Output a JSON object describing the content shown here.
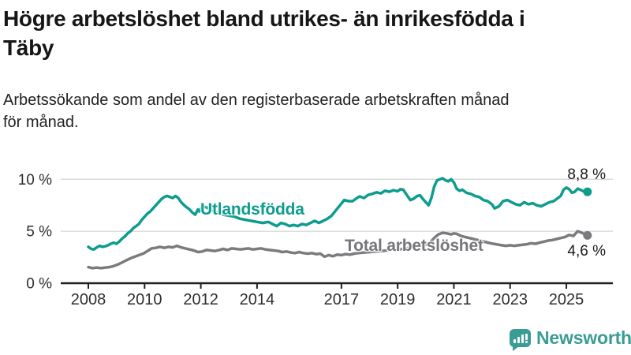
{
  "header": {
    "title": "Högre arbetslöshet bland utrikes- än inrikesfödda i\nTäby",
    "subtitle": "Arbetssökande som andel av den registerbaserade arbetskraften månad\nför månad."
  },
  "branding": {
    "name": "Newsworthy"
  },
  "colors": {
    "series_foreign_born": "#0d9c8e",
    "series_total": "#7a7a7f",
    "grid": "#d9d9d9",
    "axis": "#1f1f1f",
    "tick_text": "#2e2e2e",
    "brand_teal": "#3a9c94"
  },
  "chart_data": {
    "type": "line",
    "xlabel": "",
    "ylabel": "",
    "xlim": [
      2008,
      2025.75
    ],
    "ylim": [
      0,
      10.5
    ],
    "grid": "horizontal",
    "legend_position": "inline-labels",
    "x_axis": {
      "ticks": [
        2008,
        2010,
        2012,
        2014,
        2017,
        2019,
        2021,
        2023,
        2025
      ],
      "labels": [
        "2008",
        "2010",
        "2012",
        "2014",
        "2017",
        "2019",
        "2021",
        "2023",
        "2025"
      ]
    },
    "y_axis": {
      "ticks": [
        0,
        5,
        10
      ],
      "labels": [
        "0 %",
        "5 %",
        "10 %"
      ]
    },
    "series": [
      {
        "name": "Utlandsfödda",
        "color": "#0d9c8e",
        "end_label": "8,8 %",
        "end_value": 8.8,
        "points": [
          [
            2008.0,
            3.5
          ],
          [
            2008.1,
            3.3
          ],
          [
            2008.2,
            3.25
          ],
          [
            2008.3,
            3.45
          ],
          [
            2008.4,
            3.6
          ],
          [
            2008.5,
            3.5
          ],
          [
            2008.6,
            3.55
          ],
          [
            2008.7,
            3.65
          ],
          [
            2008.8,
            3.8
          ],
          [
            2008.9,
            3.9
          ],
          [
            2009.0,
            3.8
          ],
          [
            2009.1,
            4.0
          ],
          [
            2009.2,
            4.3
          ],
          [
            2009.3,
            4.5
          ],
          [
            2009.4,
            4.8
          ],
          [
            2009.5,
            5.0
          ],
          [
            2009.6,
            5.3
          ],
          [
            2009.7,
            5.5
          ],
          [
            2009.8,
            5.7
          ],
          [
            2009.9,
            6.1
          ],
          [
            2010.0,
            6.4
          ],
          [
            2010.1,
            6.7
          ],
          [
            2010.2,
            6.9
          ],
          [
            2010.3,
            7.2
          ],
          [
            2010.4,
            7.5
          ],
          [
            2010.5,
            7.8
          ],
          [
            2010.6,
            8.1
          ],
          [
            2010.7,
            8.3
          ],
          [
            2010.8,
            8.4
          ],
          [
            2010.9,
            8.3
          ],
          [
            2011.0,
            8.2
          ],
          [
            2011.1,
            8.4
          ],
          [
            2011.2,
            8.2
          ],
          [
            2011.3,
            7.8
          ],
          [
            2011.45,
            7.4
          ],
          [
            2011.6,
            7.1
          ],
          [
            2011.7,
            6.8
          ],
          [
            2011.8,
            6.6
          ],
          [
            2011.9,
            7.1
          ],
          [
            2011.95,
            6.9
          ],
          [
            2012.05,
            7.4
          ],
          [
            2012.2,
            7.3
          ],
          [
            2012.4,
            7.0
          ],
          [
            2012.6,
            6.8
          ],
          [
            2012.8,
            6.6
          ],
          [
            2013.0,
            6.5
          ],
          [
            2013.2,
            6.4
          ],
          [
            2013.4,
            6.2
          ],
          [
            2013.6,
            6.1
          ],
          [
            2013.8,
            6.0
          ],
          [
            2014.0,
            5.9
          ],
          [
            2014.2,
            5.8
          ],
          [
            2014.4,
            5.9
          ],
          [
            2014.55,
            5.7
          ],
          [
            2014.7,
            5.5
          ],
          [
            2014.85,
            5.8
          ],
          [
            2015.0,
            5.7
          ],
          [
            2015.15,
            5.5
          ],
          [
            2015.3,
            5.6
          ],
          [
            2015.45,
            5.5
          ],
          [
            2015.6,
            5.7
          ],
          [
            2015.75,
            5.6
          ],
          [
            2015.9,
            5.8
          ],
          [
            2016.05,
            6.0
          ],
          [
            2016.2,
            5.8
          ],
          [
            2016.35,
            6.0
          ],
          [
            2016.5,
            6.2
          ],
          [
            2016.65,
            6.5
          ],
          [
            2016.8,
            7.0
          ],
          [
            2016.95,
            7.5
          ],
          [
            2017.1,
            8.0
          ],
          [
            2017.25,
            7.9
          ],
          [
            2017.4,
            7.9
          ],
          [
            2017.55,
            8.2
          ],
          [
            2017.65,
            8.35
          ],
          [
            2017.8,
            8.2
          ],
          [
            2017.95,
            8.5
          ],
          [
            2018.1,
            8.6
          ],
          [
            2018.25,
            8.75
          ],
          [
            2018.4,
            8.65
          ],
          [
            2018.55,
            8.9
          ],
          [
            2018.7,
            8.8
          ],
          [
            2018.85,
            8.95
          ],
          [
            2019.0,
            8.85
          ],
          [
            2019.1,
            9.05
          ],
          [
            2019.2,
            9.0
          ],
          [
            2019.3,
            8.6
          ],
          [
            2019.45,
            8.0
          ],
          [
            2019.55,
            8.1
          ],
          [
            2019.7,
            8.4
          ],
          [
            2019.8,
            8.45
          ],
          [
            2019.9,
            8.1
          ],
          [
            2020.0,
            7.8
          ],
          [
            2020.1,
            7.5
          ],
          [
            2020.2,
            8.2
          ],
          [
            2020.3,
            9.3
          ],
          [
            2020.4,
            9.9
          ],
          [
            2020.5,
            10.0
          ],
          [
            2020.6,
            10.1
          ],
          [
            2020.7,
            9.9
          ],
          [
            2020.8,
            9.8
          ],
          [
            2020.9,
            10.0
          ],
          [
            2021.0,
            9.7
          ],
          [
            2021.1,
            9.1
          ],
          [
            2021.2,
            8.9
          ],
          [
            2021.3,
            9.0
          ],
          [
            2021.45,
            8.7
          ],
          [
            2021.6,
            8.6
          ],
          [
            2021.75,
            8.4
          ],
          [
            2021.9,
            8.3
          ],
          [
            2022.05,
            8.0
          ],
          [
            2022.2,
            7.9
          ],
          [
            2022.35,
            7.6
          ],
          [
            2022.45,
            7.2
          ],
          [
            2022.6,
            7.4
          ],
          [
            2022.75,
            7.9
          ],
          [
            2022.9,
            8.0
          ],
          [
            2023.05,
            7.8
          ],
          [
            2023.2,
            7.6
          ],
          [
            2023.35,
            7.5
          ],
          [
            2023.5,
            7.8
          ],
          [
            2023.65,
            7.6
          ],
          [
            2023.8,
            7.7
          ],
          [
            2023.95,
            7.5
          ],
          [
            2024.1,
            7.4
          ],
          [
            2024.25,
            7.6
          ],
          [
            2024.4,
            7.8
          ],
          [
            2024.55,
            7.9
          ],
          [
            2024.7,
            8.2
          ],
          [
            2024.8,
            8.4
          ],
          [
            2024.9,
            9.0
          ],
          [
            2025.0,
            9.2
          ],
          [
            2025.1,
            9.05
          ],
          [
            2025.2,
            8.7
          ],
          [
            2025.3,
            8.8
          ],
          [
            2025.4,
            9.1
          ],
          [
            2025.5,
            9.0
          ],
          [
            2025.6,
            8.85
          ],
          [
            2025.75,
            8.8
          ]
        ]
      },
      {
        "name": "Total arbetslöshet",
        "color": "#7a7a7f",
        "end_label": "4,6 %",
        "end_value": 4.6,
        "points": [
          [
            2008.0,
            1.55
          ],
          [
            2008.15,
            1.45
          ],
          [
            2008.3,
            1.5
          ],
          [
            2008.45,
            1.45
          ],
          [
            2008.6,
            1.5
          ],
          [
            2008.75,
            1.55
          ],
          [
            2008.9,
            1.65
          ],
          [
            2009.05,
            1.8
          ],
          [
            2009.2,
            2.0
          ],
          [
            2009.35,
            2.2
          ],
          [
            2009.5,
            2.4
          ],
          [
            2009.65,
            2.55
          ],
          [
            2009.8,
            2.7
          ],
          [
            2009.95,
            2.85
          ],
          [
            2010.1,
            3.1
          ],
          [
            2010.25,
            3.35
          ],
          [
            2010.4,
            3.4
          ],
          [
            2010.55,
            3.5
          ],
          [
            2010.7,
            3.4
          ],
          [
            2010.85,
            3.5
          ],
          [
            2011.0,
            3.45
          ],
          [
            2011.15,
            3.6
          ],
          [
            2011.3,
            3.45
          ],
          [
            2011.45,
            3.35
          ],
          [
            2011.6,
            3.25
          ],
          [
            2011.75,
            3.15
          ],
          [
            2011.9,
            3.0
          ],
          [
            2012.05,
            3.05
          ],
          [
            2012.2,
            3.2
          ],
          [
            2012.35,
            3.15
          ],
          [
            2012.5,
            3.1
          ],
          [
            2012.65,
            3.2
          ],
          [
            2012.8,
            3.3
          ],
          [
            2012.95,
            3.2
          ],
          [
            2013.1,
            3.35
          ],
          [
            2013.25,
            3.3
          ],
          [
            2013.4,
            3.25
          ],
          [
            2013.55,
            3.3
          ],
          [
            2013.7,
            3.35
          ],
          [
            2013.85,
            3.25
          ],
          [
            2014.0,
            3.3
          ],
          [
            2014.15,
            3.35
          ],
          [
            2014.3,
            3.25
          ],
          [
            2014.45,
            3.2
          ],
          [
            2014.6,
            3.15
          ],
          [
            2014.75,
            3.1
          ],
          [
            2014.9,
            3.0
          ],
          [
            2015.05,
            3.05
          ],
          [
            2015.2,
            2.95
          ],
          [
            2015.35,
            2.9
          ],
          [
            2015.5,
            3.0
          ],
          [
            2015.65,
            2.9
          ],
          [
            2015.8,
            2.85
          ],
          [
            2015.95,
            2.9
          ],
          [
            2016.1,
            2.8
          ],
          [
            2016.25,
            2.85
          ],
          [
            2016.4,
            2.55
          ],
          [
            2016.55,
            2.7
          ],
          [
            2016.7,
            2.6
          ],
          [
            2016.85,
            2.75
          ],
          [
            2017.0,
            2.7
          ],
          [
            2017.15,
            2.8
          ],
          [
            2017.3,
            2.75
          ],
          [
            2017.45,
            2.85
          ],
          [
            2017.6,
            2.9
          ],
          [
            2017.8,
            2.95
          ],
          [
            2018.0,
            3.0
          ],
          [
            2018.2,
            3.05
          ],
          [
            2018.4,
            3.1
          ],
          [
            2018.6,
            3.15
          ],
          [
            2018.8,
            3.2
          ],
          [
            2019.0,
            3.25
          ],
          [
            2019.2,
            3.3
          ],
          [
            2019.4,
            3.4
          ],
          [
            2019.6,
            3.5
          ],
          [
            2019.8,
            3.6
          ],
          [
            2020.0,
            3.7
          ],
          [
            2020.15,
            3.9
          ],
          [
            2020.3,
            4.35
          ],
          [
            2020.45,
            4.7
          ],
          [
            2020.6,
            4.85
          ],
          [
            2020.75,
            4.8
          ],
          [
            2020.9,
            4.7
          ],
          [
            2021.0,
            4.8
          ],
          [
            2021.1,
            4.75
          ],
          [
            2021.25,
            4.55
          ],
          [
            2021.4,
            4.45
          ],
          [
            2021.55,
            4.35
          ],
          [
            2021.7,
            4.25
          ],
          [
            2021.85,
            4.15
          ],
          [
            2022.0,
            4.05
          ],
          [
            2022.15,
            3.95
          ],
          [
            2022.3,
            3.85
          ],
          [
            2022.5,
            3.75
          ],
          [
            2022.7,
            3.65
          ],
          [
            2022.85,
            3.6
          ],
          [
            2023.0,
            3.65
          ],
          [
            2023.15,
            3.6
          ],
          [
            2023.3,
            3.65
          ],
          [
            2023.45,
            3.7
          ],
          [
            2023.6,
            3.75
          ],
          [
            2023.75,
            3.85
          ],
          [
            2023.9,
            3.8
          ],
          [
            2024.05,
            3.9
          ],
          [
            2024.2,
            4.0
          ],
          [
            2024.35,
            4.1
          ],
          [
            2024.5,
            4.15
          ],
          [
            2024.65,
            4.25
          ],
          [
            2024.8,
            4.35
          ],
          [
            2024.95,
            4.45
          ],
          [
            2025.1,
            4.65
          ],
          [
            2025.25,
            4.55
          ],
          [
            2025.4,
            5.0
          ],
          [
            2025.55,
            4.85
          ],
          [
            2025.75,
            4.6
          ]
        ]
      }
    ]
  }
}
